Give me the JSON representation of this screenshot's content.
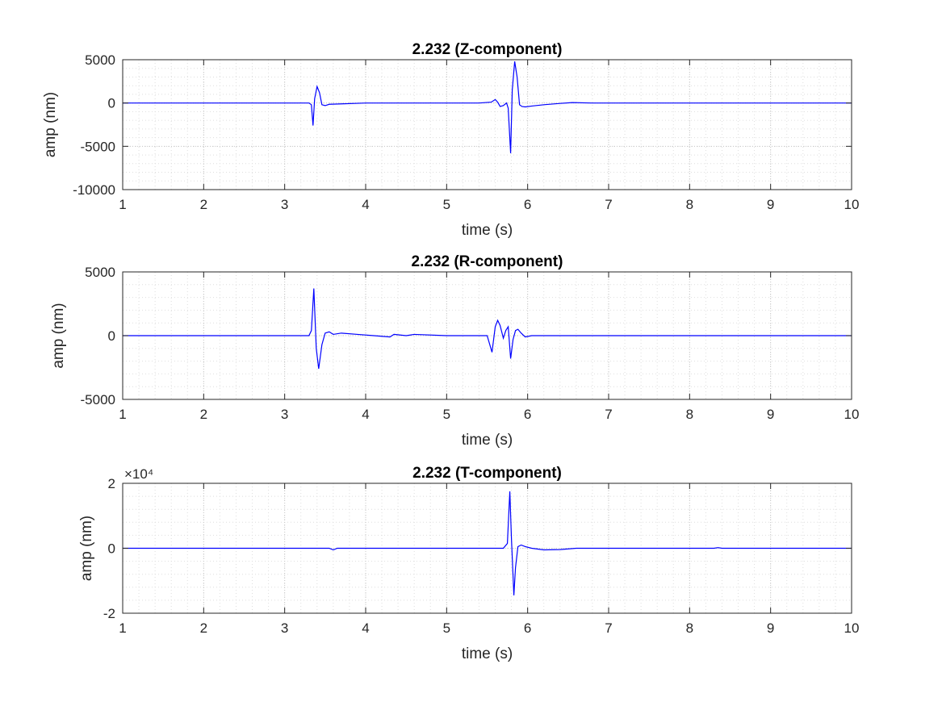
{
  "chart_data": [
    {
      "type": "line",
      "title": "2.232 (Z-component)",
      "xlabel": "time (s)",
      "ylabel": "amp (nm)",
      "xlim": [
        1,
        10
      ],
      "ylim": [
        -10000,
        5000
      ],
      "xticks": [
        1,
        2,
        3,
        4,
        5,
        6,
        7,
        8,
        9,
        10
      ],
      "yticks": [
        -10000,
        -5000,
        0,
        5000
      ],
      "ytick_labels": [
        "-10000",
        "-5000",
        "0",
        "5000"
      ],
      "exponent_label": "",
      "grid": true,
      "color": "#0000ff",
      "series": [
        {
          "x": [
            1,
            3.3,
            3.33,
            3.35,
            3.37,
            3.4,
            3.43,
            3.46,
            3.5,
            3.55,
            3.7,
            4.0,
            4.5,
            5.0,
            5.4,
            5.55,
            5.6,
            5.63,
            5.66,
            5.7,
            5.74,
            5.76,
            5.79,
            5.81,
            5.84,
            5.87,
            5.9,
            5.93,
            5.97,
            6.05,
            6.2,
            6.4,
            6.55,
            6.8,
            7.5,
            10
          ],
          "y": [
            0,
            0,
            -200,
            -2600,
            500,
            1900,
            1200,
            -200,
            -300,
            -150,
            -100,
            0,
            0,
            0,
            0,
            100,
            400,
            100,
            -400,
            -300,
            0,
            -600,
            -5800,
            1500,
            4800,
            3000,
            -200,
            -400,
            -450,
            -350,
            -200,
            -50,
            50,
            0,
            0,
            0
          ]
        }
      ]
    },
    {
      "type": "line",
      "title": "2.232 (R-component)",
      "xlabel": "time (s)",
      "ylabel": "amp (nm)",
      "xlim": [
        1,
        10
      ],
      "ylim": [
        -5000,
        5000
      ],
      "xticks": [
        1,
        2,
        3,
        4,
        5,
        6,
        7,
        8,
        9,
        10
      ],
      "yticks": [
        -5000,
        0,
        5000
      ],
      "ytick_labels": [
        "-5000",
        "0",
        "5000"
      ],
      "exponent_label": "",
      "grid": true,
      "color": "#0000ff",
      "series": [
        {
          "x": [
            1,
            3.3,
            3.33,
            3.36,
            3.39,
            3.42,
            3.46,
            3.5,
            3.55,
            3.6,
            3.7,
            3.9,
            4.1,
            4.3,
            4.35,
            4.5,
            4.6,
            5.0,
            5.5,
            5.56,
            5.6,
            5.63,
            5.66,
            5.7,
            5.73,
            5.76,
            5.79,
            5.82,
            5.85,
            5.88,
            5.92,
            5.97,
            6.05,
            6.2,
            7.0,
            8.0,
            9.5,
            10
          ],
          "y": [
            0,
            0,
            400,
            3700,
            -1000,
            -2600,
            -700,
            200,
            300,
            100,
            200,
            100,
            0,
            -100,
            100,
            0,
            100,
            0,
            0,
            -1300,
            700,
            1200,
            800,
            -200,
            400,
            700,
            -1800,
            -300,
            400,
            500,
            200,
            -100,
            0,
            0,
            0,
            0,
            0,
            0
          ]
        }
      ]
    },
    {
      "type": "line",
      "title": "2.232 (T-component)",
      "xlabel": "time (s)",
      "ylabel": "amp (nm)",
      "xlim": [
        1,
        10
      ],
      "ylim": [
        -2,
        2
      ],
      "xticks": [
        1,
        2,
        3,
        4,
        5,
        6,
        7,
        8,
        9,
        10
      ],
      "yticks": [
        -2,
        0,
        2
      ],
      "ytick_labels": [
        "-2",
        "0",
        "2"
      ],
      "exponent_label": "×10⁴",
      "grid": true,
      "color": "#0000ff",
      "series": [
        {
          "x": [
            1,
            3.55,
            3.6,
            3.65,
            3.7,
            5.5,
            5.7,
            5.75,
            5.78,
            5.8,
            5.83,
            5.85,
            5.88,
            5.92,
            5.97,
            6.05,
            6.2,
            6.4,
            6.6,
            8.3,
            8.35,
            8.4,
            10
          ],
          "y": [
            0,
            0,
            -0.05,
            0,
            0,
            0,
            0,
            0.15,
            1.75,
            0.3,
            -1.45,
            -0.6,
            0.05,
            0.1,
            0.05,
            0,
            -0.05,
            -0.04,
            0,
            0,
            0.02,
            0,
            0
          ]
        }
      ]
    }
  ]
}
